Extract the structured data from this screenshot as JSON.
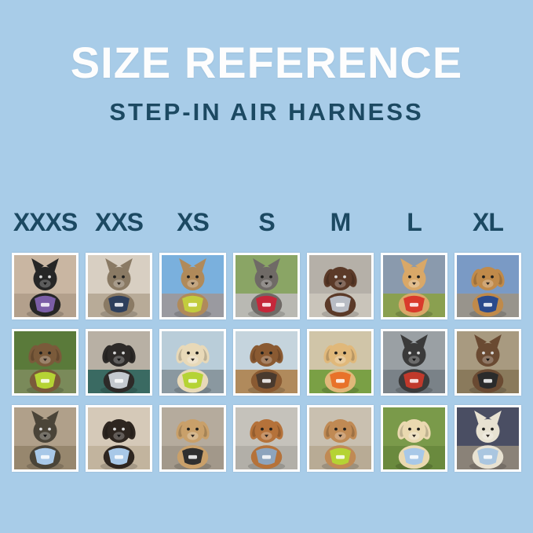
{
  "header": {
    "title": "SIZE REFERENCE",
    "subtitle": "STEP-IN AIR HARNESS"
  },
  "colors": {
    "background": "#a8cce8",
    "title_text": "#fdfdfd",
    "accent_text": "#1c4962",
    "tile_border": "#ffffff"
  },
  "sizes": [
    "XXXS",
    "XXS",
    "XS",
    "S",
    "M",
    "L",
    "XL"
  ],
  "grid": {
    "rows": [
      {
        "cells": [
          {
            "size": "XXXS",
            "animal": "black kitten",
            "description": "Black kitten wearing a purple harness indoors by a white railing",
            "ears": "pointy",
            "fur": "#262626",
            "harness": "#7b5ea7",
            "bg_top": "#c9b6a2",
            "bg_bottom": "#b3a08c"
          },
          {
            "size": "XXS",
            "animal": "tabby cat",
            "description": "Brown tabby cat in a navy harness looking out a window",
            "ears": "pointy",
            "fur": "#8a7a64",
            "harness": "#2e3f5c",
            "bg_top": "#d8cfc2",
            "bg_bottom": "#b8ab98"
          },
          {
            "size": "XS",
            "animal": "bengal cat",
            "description": "Bengal cat in a yellow-green harness riding in a car",
            "ears": "pointy",
            "fur": "#b08a5a",
            "harness": "#c2cc3e",
            "bg_top": "#7ab0dd",
            "bg_bottom": "#9a9aa0"
          },
          {
            "size": "S",
            "animal": "french bulldog",
            "description": "Grey French bulldog in a red harness standing on a sidewalk",
            "ears": "pointy",
            "fur": "#6f6a66",
            "harness": "#c5273a",
            "bg_top": "#8aa565",
            "bg_bottom": "#b9b9b3"
          },
          {
            "size": "M",
            "animal": "chocolate spaniel",
            "description": "Chocolate brown spaniel in a light grey harness sitting on pavement",
            "ears": "floppy",
            "fur": "#5b3a28",
            "harness": "#b8bcc4",
            "bg_top": "#b5b0a8",
            "bg_bottom": "#c9c4ba"
          },
          {
            "size": "L",
            "animal": "shiba inu",
            "description": "Shiba inu in a red harness holding an orange ball on a grass field",
            "ears": "pointy",
            "fur": "#d9a868",
            "harness": "#d93a2b",
            "bg_top": "#8a9aad",
            "bg_bottom": "#8aa050"
          },
          {
            "size": "XL",
            "animal": "golden retriever",
            "description": "Golden retriever in a navy blue harness on a path lined with yellow flowers",
            "ears": "floppy",
            "fur": "#c08a4a",
            "harness": "#2b4a8c",
            "bg_top": "#7a9ac5",
            "bg_bottom": "#98948c"
          }
        ]
      },
      {
        "cells": [
          {
            "size": "XXXS",
            "animal": "scruffy puppy",
            "description": "Scruffy brown dachshund puppy in a lime green harness outdoors",
            "ears": "floppy",
            "fur": "#7a5a3a",
            "harness": "#b5d334",
            "bg_top": "#5a7a3a",
            "bg_bottom": "#7a8a5a"
          },
          {
            "size": "XXS",
            "animal": "black puppy",
            "description": "Black puppy in a light grey harness on a teal blanket in a car",
            "ears": "floppy",
            "fur": "#2d2a28",
            "harness": "#c4c9cf",
            "bg_top": "#b8b0a4",
            "bg_bottom": "#3a6a62"
          },
          {
            "size": "XS",
            "animal": "cream dachshund",
            "description": "Cream long-haired dachshund in a lime green harness on a boat",
            "ears": "floppy",
            "fur": "#e8d9b8",
            "harness": "#b5d334",
            "bg_top": "#b9cdd9",
            "bg_bottom": "#8a98a0"
          },
          {
            "size": "S",
            "animal": "brown dachshund",
            "description": "Brown long-haired dachshund in a dark brown harness on a wooden deck",
            "ears": "floppy",
            "fur": "#8a5a32",
            "harness": "#4a3a2e",
            "bg_top": "#c5d4dd",
            "bg_bottom": "#b08a5c"
          },
          {
            "size": "M",
            "animal": "golden puppy",
            "description": "Smiling golden retriever puppy in an orange harness on a sunny patio",
            "ears": "floppy",
            "fur": "#e0b87a",
            "harness": "#e8722a",
            "bg_top": "#d0c5a8",
            "bg_bottom": "#7aa045"
          },
          {
            "size": "L",
            "animal": "kelpie",
            "description": "Black-and-tan dog in a red harness standing inside a corrugated metal tunnel",
            "ears": "pointy",
            "fur": "#3a3a3a",
            "harness": "#c0392b",
            "bg_top": "#9aa0a4",
            "bg_bottom": "#7a8288"
          },
          {
            "size": "XL",
            "animal": "aussie mix",
            "description": "Brown-and-white dog in a black harness sitting on wooden steps",
            "ears": "pointy",
            "fur": "#6a4a32",
            "harness": "#2b2b2b",
            "bg_top": "#a89a80",
            "bg_bottom": "#8a7a5c"
          }
        ]
      },
      {
        "cells": [
          {
            "size": "XXXS",
            "animal": "yorkshire terrier",
            "description": "Yorkshire terrier in a light blue harness on a sunny dirt path",
            "ears": "pointy",
            "fur": "#4a4438",
            "harness": "#a8c8e8",
            "bg_top": "#b0a08a",
            "bg_bottom": "#97876e"
          },
          {
            "size": "XXS",
            "animal": "dachshund puppy",
            "description": "Black-and-tan dachshund in a light blue harness on a beige sofa",
            "ears": "floppy",
            "fur": "#2e2620",
            "harness": "#a8c8e8",
            "bg_top": "#d5c9b8",
            "bg_bottom": "#c2b49e"
          },
          {
            "size": "XS",
            "animal": "poodle puppy",
            "description": "Apricot poodle puppy in a black harness on a wooden deck",
            "ears": "floppy",
            "fur": "#c9a06a",
            "harness": "#2f2f2f",
            "bg_top": "#b5ab9d",
            "bg_bottom": "#a2988a"
          },
          {
            "size": "S",
            "animal": "tan dachshund",
            "description": "Tan dachshund in a slate blue harness standing on concrete",
            "ears": "floppy",
            "fur": "#b5723a",
            "harness": "#8da4bd",
            "bg_top": "#c5c2bb",
            "bg_bottom": "#b2afa8"
          },
          {
            "size": "M",
            "animal": "goldendoodle",
            "description": "Apricot goldendoodle in a lime green harness sitting on a sidewalk",
            "ears": "floppy",
            "fur": "#c08a54",
            "harness": "#b5d334",
            "bg_top": "#c9c0b0",
            "bg_bottom": "#b8ab95"
          },
          {
            "size": "L",
            "animal": "golden puppy",
            "description": "Cream golden retriever puppy in a light blue harness with a blue leash on grass",
            "ears": "floppy",
            "fur": "#ead9b0",
            "harness": "#a8c8e8",
            "bg_top": "#7a9a4a",
            "bg_bottom": "#6a8a3e"
          },
          {
            "size": "XL",
            "animal": "white shepherd",
            "description": "White shepherd in a light blue harness on a city street at night",
            "ears": "pointy",
            "fur": "#e8e2d2",
            "harness": "#aac6e0",
            "bg_top": "#4a4e63",
            "bg_bottom": "#8a8278"
          }
        ]
      }
    ]
  }
}
